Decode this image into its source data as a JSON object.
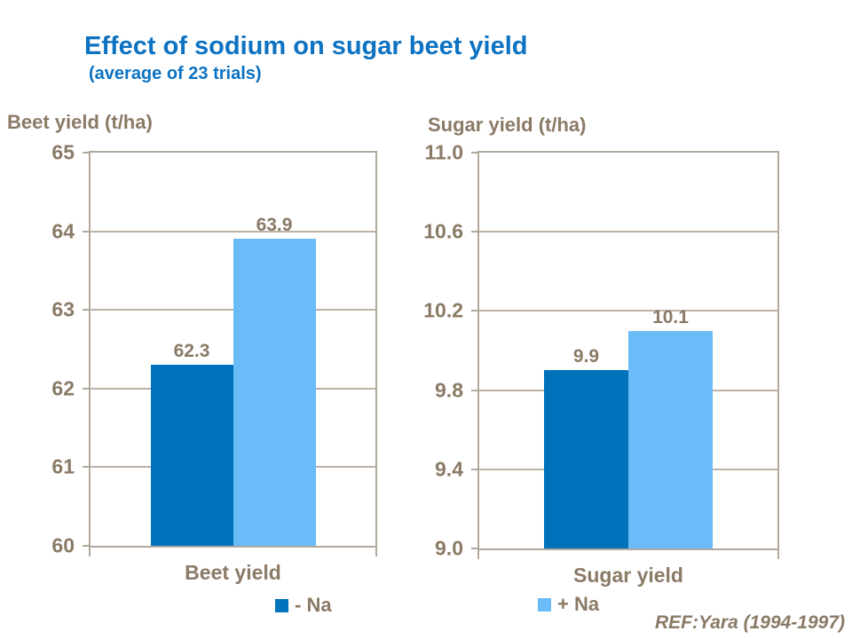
{
  "title": "Effect of sodium on sugar beet yield",
  "subtitle": "(average of 23 trials)",
  "reference": "REF:Yara (1994-1997)",
  "colors": {
    "title_blue": "#0C72C2",
    "text_brown": "#8A7A66",
    "axis_line": "#B2A89C",
    "bar_dark_blue": "#0072BC",
    "bar_light_blue": "#69BCF8",
    "background": "#FFFFFF"
  },
  "legend": {
    "items": [
      {
        "label": "- Na",
        "color": "#0072BC"
      },
      {
        "label": "+ Na",
        "color": "#69BCF8"
      }
    ]
  },
  "chart_data": [
    {
      "type": "bar",
      "title": "Beet yield (t/ha)",
      "xlabel": "Beet yield",
      "categories": [
        "Beet yield"
      ],
      "ylim": [
        60,
        65
      ],
      "yticks": [
        "65",
        "64",
        "63",
        "62",
        "61",
        "60"
      ],
      "grid": true,
      "legend_position": "bottom",
      "series": [
        {
          "name": "- Na",
          "color": "#0072BC",
          "values": [
            62.3
          ],
          "labels": [
            "62.3"
          ]
        },
        {
          "name": "+ Na",
          "color": "#69BCF8",
          "values": [
            63.9
          ],
          "labels": [
            "63.9"
          ]
        }
      ]
    },
    {
      "type": "bar",
      "title": "Sugar yield (t/ha)",
      "xlabel": "Sugar yield",
      "categories": [
        "Sugar yield"
      ],
      "ylim": [
        9.0,
        11.0
      ],
      "yticks": [
        "11.0",
        "10.6",
        "10.2",
        "9.8",
        "9.4",
        "9.0"
      ],
      "grid": true,
      "legend_position": "bottom",
      "series": [
        {
          "name": "- Na",
          "color": "#0072BC",
          "values": [
            9.9
          ],
          "labels": [
            "9.9"
          ]
        },
        {
          "name": "+ Na",
          "color": "#69BCF8",
          "values": [
            10.1
          ],
          "labels": [
            "10.1"
          ]
        }
      ]
    }
  ]
}
